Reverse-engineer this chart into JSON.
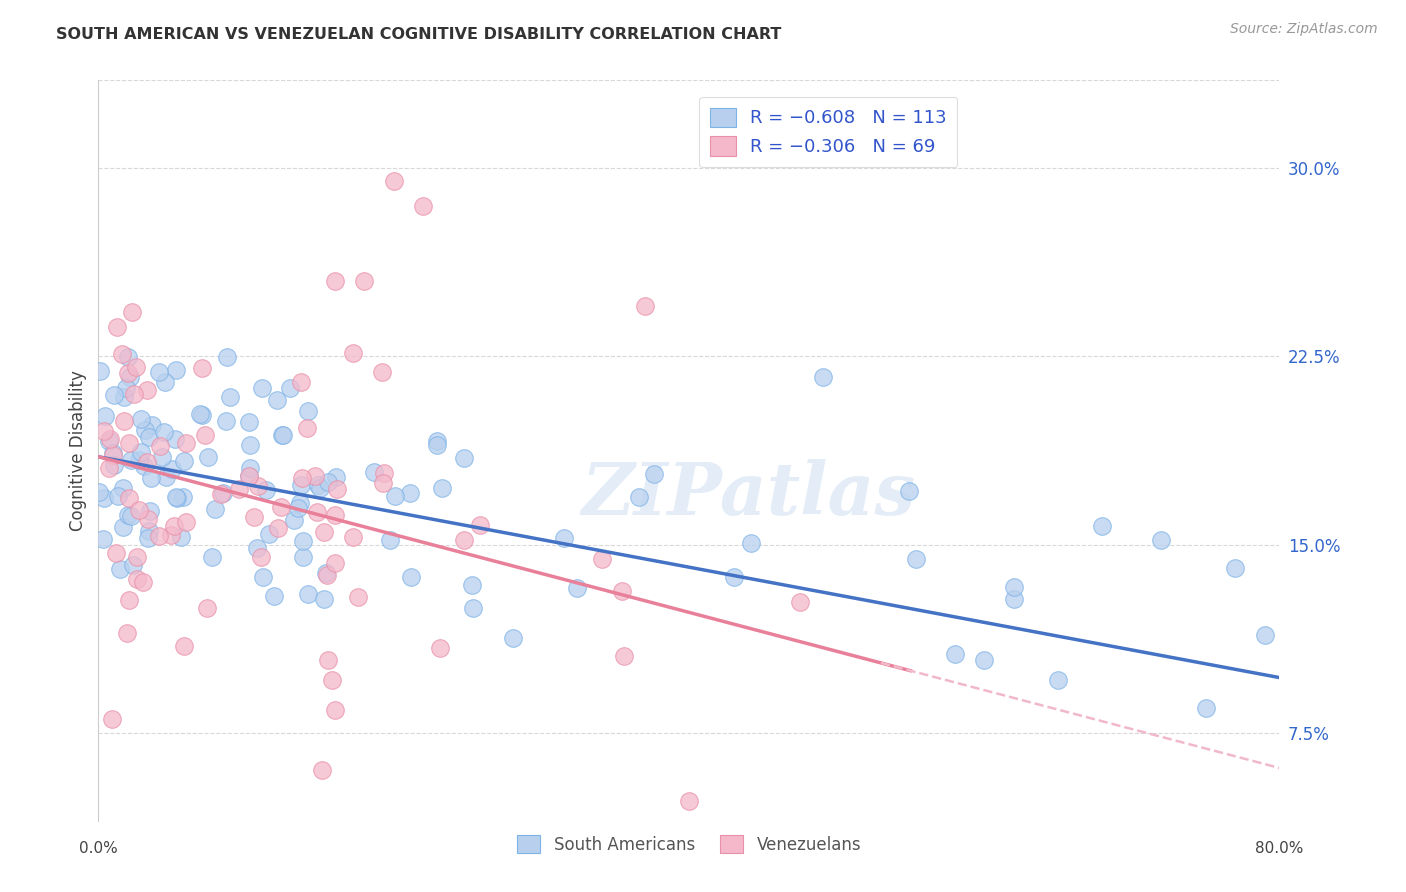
{
  "title": "SOUTH AMERICAN VS VENEZUELAN COGNITIVE DISABILITY CORRELATION CHART",
  "source": "Source: ZipAtlas.com",
  "ylabel": "Cognitive Disability",
  "ytick_values": [
    0.075,
    0.15,
    0.225,
    0.3
  ],
  "ytick_labels": [
    "7.5%",
    "15.0%",
    "22.5%",
    "30.0%"
  ],
  "xlim": [
    0.0,
    0.8
  ],
  "ylim": [
    0.04,
    0.335
  ],
  "watermark": "ZIPatlas",
  "blue_scatter_fill": "#B8D0EE",
  "blue_scatter_edge": "#7EB3E8",
  "pink_scatter_fill": "#F4B8CA",
  "pink_scatter_edge": "#E890A8",
  "blue_line_color": "#4472C4",
  "pink_line_color": "#E8809A",
  "pink_dash_color": "#F0B8C8",
  "background_color": "#FFFFFF",
  "grid_color": "#C8C8C8",
  "title_color": "#333333",
  "source_color": "#999999",
  "legend_text_color": "#3355CC",
  "R_blue": -0.608,
  "N_blue": 113,
  "R_pink": -0.306,
  "N_pink": 69,
  "blue_intercept": 0.185,
  "blue_slope": -0.11,
  "pink_intercept": 0.185,
  "pink_slope": -0.155
}
